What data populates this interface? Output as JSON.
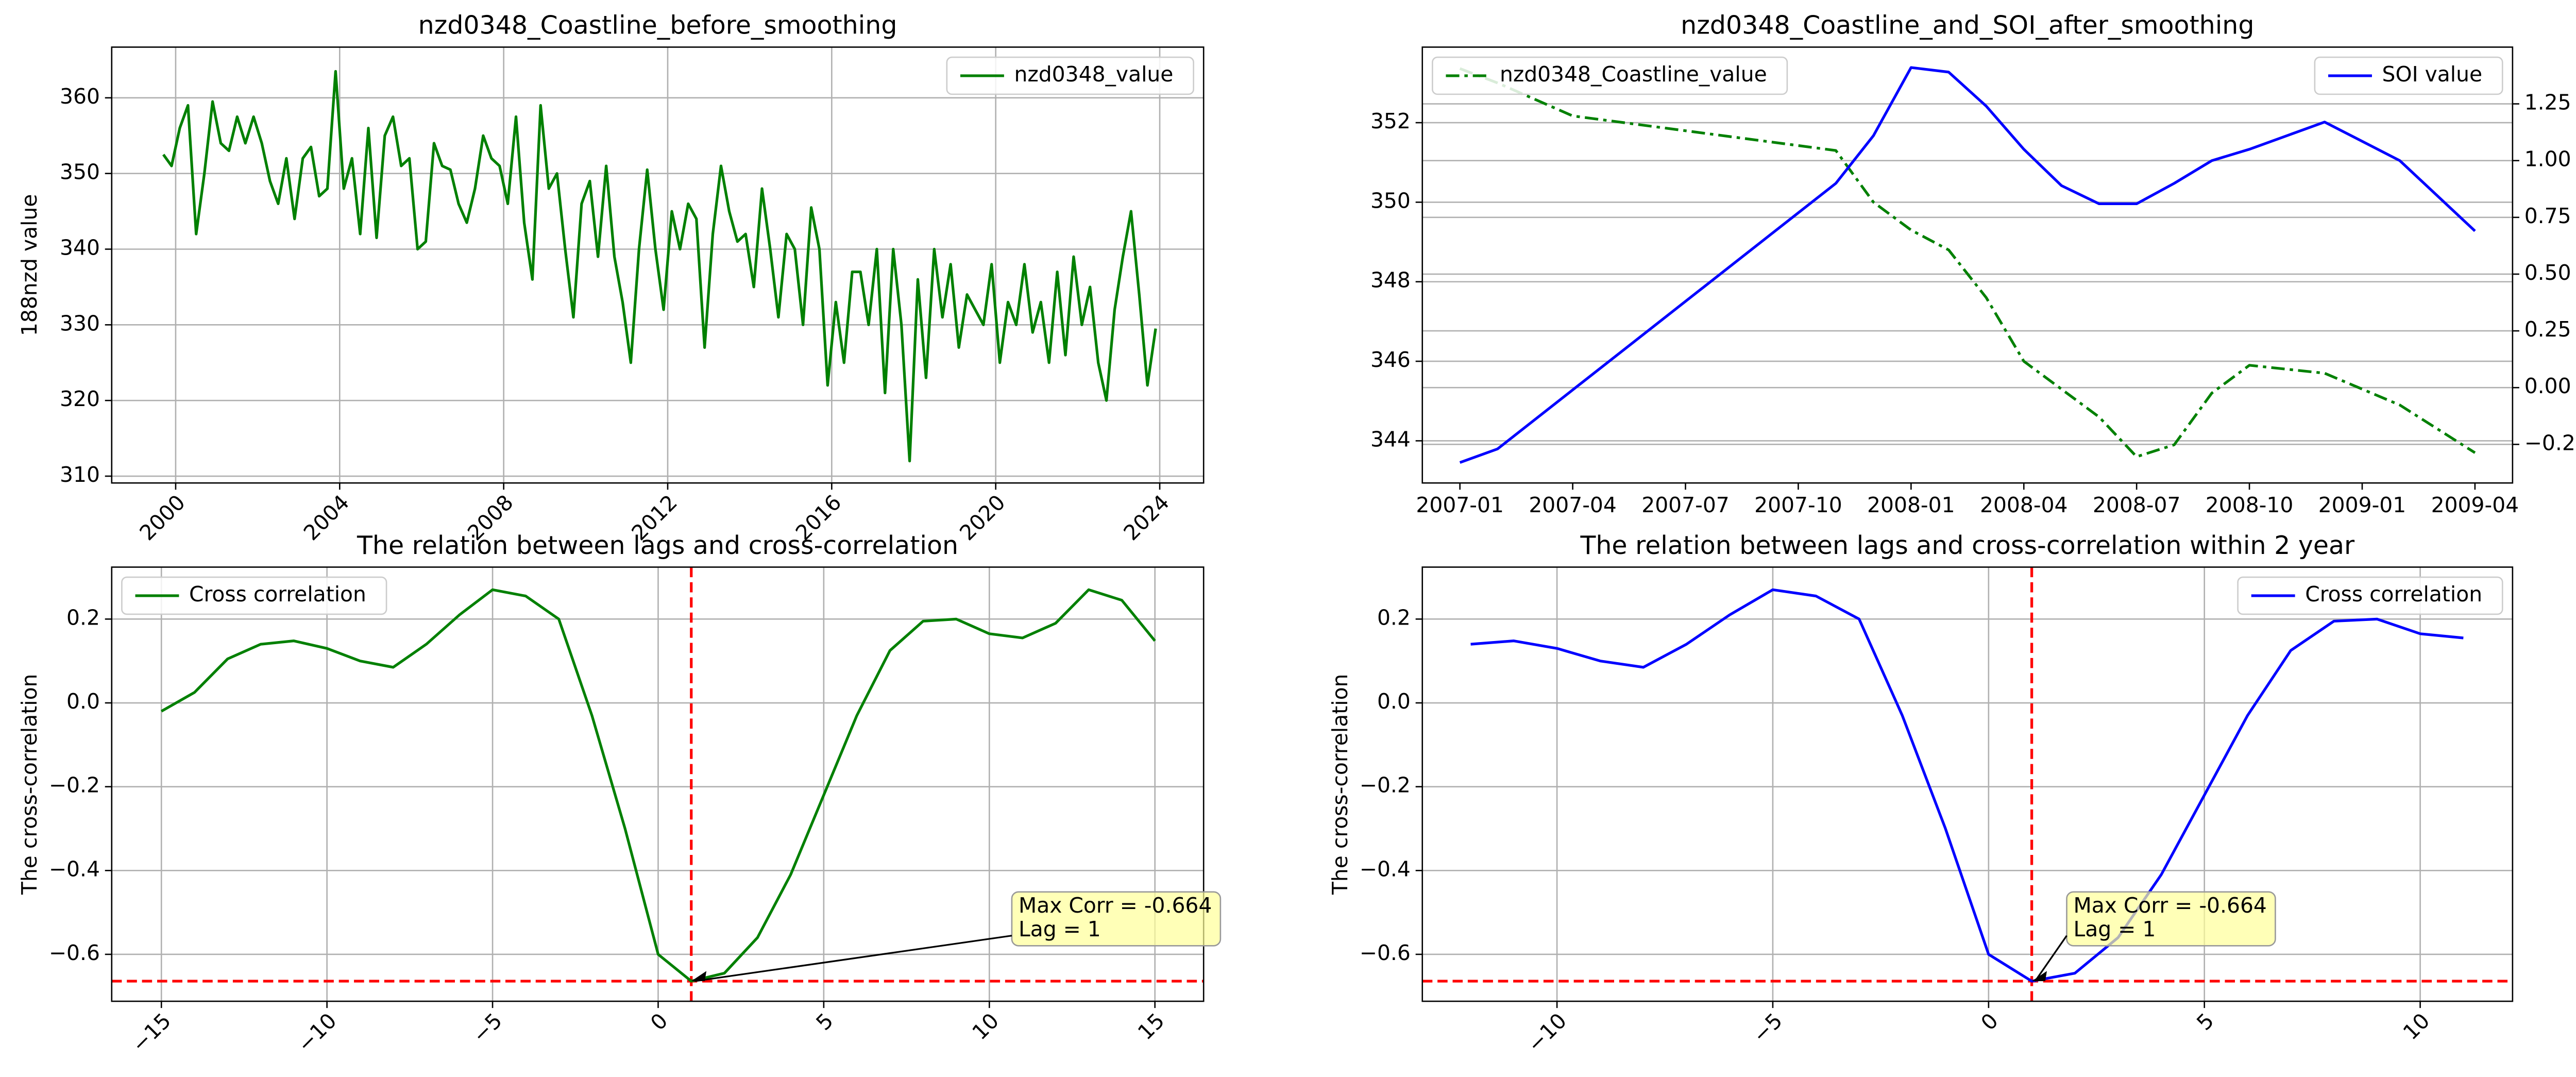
{
  "chart_data": [
    {
      "type": "line",
      "title": "nzd0348_Coastline_before_smoothing",
      "ylabel": "188nzd value",
      "x": [
        1999.7,
        1999.9,
        2000.1,
        2000.3,
        2000.5,
        2000.7,
        2000.9,
        2001.1,
        2001.3,
        2001.5,
        2001.7,
        2001.9,
        2002.1,
        2002.3,
        2002.5,
        2002.7,
        2002.9,
        2003.1,
        2003.3,
        2003.5,
        2003.7,
        2003.9,
        2004.1,
        2004.3,
        2004.5,
        2004.7,
        2004.9,
        2005.1,
        2005.3,
        2005.5,
        2005.7,
        2005.9,
        2006.1,
        2006.3,
        2006.5,
        2006.7,
        2006.9,
        2007.1,
        2007.3,
        2007.5,
        2007.7,
        2007.9,
        2008.1,
        2008.3,
        2008.5,
        2008.7,
        2008.9,
        2009.1,
        2009.3,
        2009.5,
        2009.7,
        2009.9,
        2010.1,
        2010.3,
        2010.5,
        2010.7,
        2010.9,
        2011.1,
        2011.3,
        2011.5,
        2011.7,
        2011.9,
        2012.1,
        2012.3,
        2012.5,
        2012.7,
        2012.9,
        2013.1,
        2013.3,
        2013.5,
        2013.7,
        2013.9,
        2014.1,
        2014.3,
        2014.5,
        2014.7,
        2014.9,
        2015.1,
        2015.3,
        2015.5,
        2015.7,
        2015.9,
        2016.1,
        2016.3,
        2016.5,
        2016.7,
        2016.9,
        2017.1,
        2017.3,
        2017.5,
        2017.7,
        2017.9,
        2018.1,
        2018.3,
        2018.5,
        2018.7,
        2018.9,
        2019.1,
        2019.3,
        2019.5,
        2019.7,
        2019.9,
        2020.1,
        2020.3,
        2020.5,
        2020.7,
        2020.9,
        2021.1,
        2021.3,
        2021.5,
        2021.7,
        2021.9,
        2022.1,
        2022.3,
        2022.5,
        2022.7,
        2022.9,
        2023.1,
        2023.3,
        2023.5,
        2023.7,
        2023.9
      ],
      "series": [
        {
          "name": "nzd0348_value",
          "color": "#008000",
          "values": [
            352.5,
            351,
            356,
            359,
            342,
            350,
            359.5,
            354,
            353,
            357.5,
            354,
            357.5,
            354,
            349,
            346,
            352,
            344,
            352,
            353.5,
            347,
            348,
            363.5,
            348,
            352,
            342,
            356,
            341.5,
            355,
            357.5,
            351,
            352,
            340,
            341,
            354,
            351,
            350.5,
            346,
            343.5,
            348,
            355,
            352,
            351,
            346,
            357.5,
            343.5,
            336,
            359,
            348,
            350,
            340,
            331,
            346,
            349,
            339,
            351,
            339,
            333,
            325,
            340,
            350.5,
            340,
            332,
            345,
            340,
            346,
            344,
            327,
            342,
            351,
            345,
            341,
            342,
            335,
            348,
            340,
            331,
            342,
            340,
            330,
            345.5,
            340,
            322,
            333,
            325,
            337,
            337,
            330,
            340,
            321,
            340,
            330,
            312,
            336,
            323,
            340,
            331,
            338,
            327,
            334,
            332,
            330,
            338,
            325,
            333,
            330,
            338,
            329,
            333,
            325,
            337,
            326,
            339,
            330,
            335,
            325,
            320,
            332,
            339,
            345,
            334,
            322,
            329.5
          ]
        }
      ],
      "xlim": [
        1998.44,
        2025.07
      ],
      "xticks": [
        2000,
        2004,
        2008,
        2012,
        2016,
        2020,
        2024
      ],
      "ylim": [
        309.1,
        366.7
      ],
      "yticks": [
        310,
        320,
        330,
        340,
        350,
        360
      ],
      "grid": true,
      "legend": "upper right",
      "rotate_xticks": true
    },
    {
      "type": "line",
      "title": "nzd0348_Coastline_and_SOI_after_smoothing",
      "y2label": "SOI value",
      "x": [
        "2007-01",
        "2007-02",
        "2007-04",
        "2007-11",
        "2007-12",
        "2008-01",
        "2008-02",
        "2008-03",
        "2008-04",
        "2008-05",
        "2008-06",
        "2008-07",
        "2008-08",
        "2008-09",
        "2008-10",
        "2008-12",
        "2009-02",
        "2009-04"
      ],
      "series": [
        {
          "name": "nzd0348_Coastline_value",
          "color": "#008000",
          "linestyle": "dashdot",
          "legend": "upper left",
          "values": [
            353.36,
            353.0,
            352.17,
            351.3,
            350.0,
            349.3,
            348.8,
            347.6,
            346.0,
            345.3,
            344.6,
            343.6,
            343.9,
            345.2,
            345.9,
            345.7,
            344.9,
            343.7
          ]
        },
        {
          "name": "SOI value",
          "color": "#0000ff",
          "axis": "y2",
          "legend": "upper right",
          "values": [
            -0.33,
            -0.27,
            -0.01,
            0.9,
            1.11,
            1.41,
            1.39,
            1.24,
            1.05,
            0.89,
            0.81,
            0.81,
            0.9,
            1.0,
            1.05,
            1.17,
            1.0,
            0.69
          ]
        }
      ],
      "xlim": [
        "2006-12",
        "2009-05"
      ],
      "xticks": [
        "2007-01",
        "2007-04",
        "2007-07",
        "2007-10",
        "2008-01",
        "2008-04",
        "2008-07",
        "2008-10",
        "2009-01",
        "2009-04"
      ],
      "ylim": [
        342.94,
        353.9
      ],
      "yticks": [
        344,
        346,
        348,
        350,
        352
      ],
      "y2lim": [
        -0.42,
        1.5
      ],
      "y2ticks": [
        {
          "value": -0.25,
          "label": "−0.25"
        },
        {
          "value": 0,
          "label": "0.00"
        },
        0.25,
        {
          "value": 0.5,
          "label": "0.50"
        },
        0.75,
        {
          "value": 1,
          "label": "1.00"
        },
        1.25
      ],
      "grid": "y",
      "rotate_xticks": false
    },
    {
      "type": "line",
      "title": "The relation between lags and cross-correlation",
      "ylabel": "The cross-correlation",
      "x": [
        -15,
        -14,
        -13,
        -12,
        -11,
        -10,
        -9,
        -8,
        -7,
        -6,
        -5,
        -4,
        -3,
        -2,
        -1,
        0,
        1,
        2,
        3,
        4,
        5,
        6,
        7,
        8,
        9,
        10,
        11,
        12,
        13,
        14,
        15
      ],
      "series": [
        {
          "name": "Cross correlation",
          "color": "#008000",
          "values": [
            -0.02,
            0.025,
            0.105,
            0.14,
            0.148,
            0.13,
            0.1,
            0.085,
            0.14,
            0.21,
            0.27,
            0.255,
            0.2,
            -0.03,
            -0.3,
            -0.6,
            -0.664,
            -0.645,
            -0.56,
            -0.41,
            -0.22,
            -0.03,
            0.125,
            0.195,
            0.2,
            0.165,
            0.155,
            0.19,
            0.27,
            0.245,
            0.148
          ]
        }
      ],
      "xlim": [
        -16.5,
        16.47
      ],
      "xticks": [
        {
          "value": -15,
          "label": "−15"
        },
        {
          "value": -10,
          "label": "−10"
        },
        {
          "value": -5,
          "label": "−5"
        },
        0,
        5,
        10,
        15
      ],
      "ylim": [
        -0.712,
        0.324
      ],
      "yticks": [
        {
          "value": -0.6,
          "label": "−0.6"
        },
        {
          "value": -0.4,
          "label": "−0.4"
        },
        {
          "value": -0.2,
          "label": "−0.2"
        },
        {
          "value": 0,
          "label": "0.0"
        },
        0.2
      ],
      "vline": 1,
      "hline": -0.664,
      "annotation": [
        "Max Corr = -0.664",
        "Lag = 1"
      ],
      "grid": true,
      "legend": "upper left",
      "rotate_xticks": true
    },
    {
      "type": "line",
      "title": "The relation between lags and cross-correlation within 2 year",
      "ylabel": "The cross-correlation",
      "x": [
        -12,
        -11,
        -10,
        -9,
        -8,
        -7,
        -6,
        -5,
        -4,
        -3,
        -2,
        -1,
        0,
        1,
        2,
        3,
        4,
        5,
        6,
        7,
        8,
        9,
        10,
        11
      ],
      "series": [
        {
          "name": "Cross correlation",
          "color": "#0000ff",
          "values": [
            0.14,
            0.148,
            0.13,
            0.1,
            0.085,
            0.14,
            0.21,
            0.27,
            0.255,
            0.2,
            -0.03,
            -0.3,
            -0.6,
            -0.664,
            -0.645,
            -0.56,
            -0.41,
            -0.22,
            -0.03,
            0.125,
            0.195,
            0.2,
            0.165,
            0.155
          ]
        }
      ],
      "xlim": [
        -13.12,
        12.14
      ],
      "xticks": [
        {
          "value": -10,
          "label": "−10"
        },
        {
          "value": -5,
          "label": "−5"
        },
        0,
        5,
        10
      ],
      "ylim": [
        -0.712,
        0.324
      ],
      "yticks": [
        {
          "value": -0.6,
          "label": "−0.6"
        },
        {
          "value": -0.4,
          "label": "−0.4"
        },
        {
          "value": -0.2,
          "label": "−0.2"
        },
        {
          "value": 0,
          "label": "0.0"
        },
        0.2
      ],
      "vline": 1,
      "hline": -0.664,
      "annotation": [
        "Max Corr = -0.664",
        "Lag = 1"
      ],
      "grid": true,
      "legend": "upper right",
      "rotate_xticks": true
    }
  ]
}
